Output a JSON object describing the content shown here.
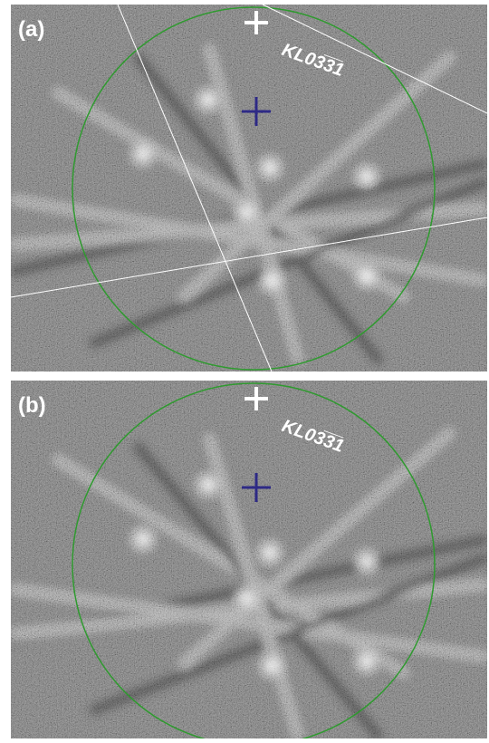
{
  "panels": [
    {
      "label": "(a)",
      "annotation": "KL03̅3̅1"
    },
    {
      "label": "(b)",
      "annotation": "KL03̅3̅1"
    }
  ]
}
